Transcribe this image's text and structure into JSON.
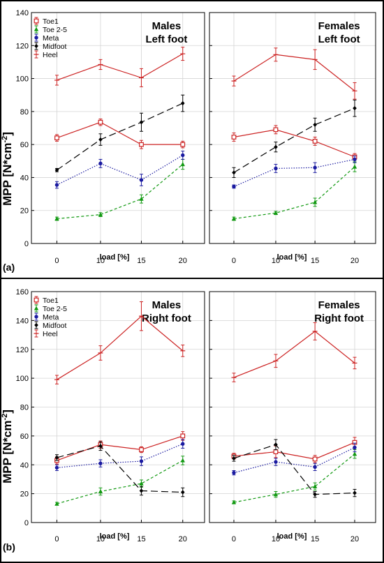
{
  "figure": {
    "y_axis_label": "MPP [N*cm",
    "y_axis_label_sup": "-2",
    "y_axis_label_end": "]",
    "x_axis_label": "load [%]"
  },
  "chart_data": [
    {
      "id": "a",
      "type": "line",
      "panel_label": "(a)",
      "x": [
        0,
        10,
        15,
        20
      ],
      "xticks": [
        "0",
        "10",
        "15",
        "20"
      ],
      "ylim": [
        0,
        140
      ],
      "yticks": [
        "0",
        "20",
        "40",
        "60",
        "80",
        "100",
        "120",
        "140"
      ],
      "legend": [
        "Toe1",
        "Toe 2-5",
        "Meta",
        "Midfoot",
        "Heel"
      ],
      "subplots": [
        {
          "title_line1": "Males",
          "title_line2": "Left foot",
          "series": [
            {
              "name": "Toe1",
              "values": [
                64,
                73.5,
                60,
                60
              ],
              "errors": [
                2,
                2,
                2.5,
                2
              ]
            },
            {
              "name": "Toe 2-5",
              "values": [
                15,
                17.5,
                27,
                48
              ],
              "errors": [
                1,
                1.2,
                2.5,
                3
              ]
            },
            {
              "name": "Meta",
              "values": [
                35.5,
                48.5,
                38.5,
                53.5
              ],
              "errors": [
                2,
                2.5,
                3.5,
                2.5
              ]
            },
            {
              "name": "Midfoot",
              "values": [
                44.5,
                63,
                73.5,
                85
              ],
              "errors": [
                1,
                3.5,
                5.5,
                5
              ]
            },
            {
              "name": "Heel",
              "values": [
                99,
                108.5,
                100.5,
                115
              ],
              "errors": [
                3,
                3,
                5.5,
                4
              ]
            }
          ]
        },
        {
          "title_line1": "Females",
          "title_line2": "Left foot",
          "series": [
            {
              "name": "Toe1",
              "values": [
                64.5,
                69,
                62,
                52.5
              ],
              "errors": [
                2.5,
                2.5,
                2.5,
                2
              ]
            },
            {
              "name": "Toe 2-5",
              "values": [
                15,
                18.5,
                25,
                46.5
              ],
              "errors": [
                1,
                1,
                2.5,
                3
              ]
            },
            {
              "name": "Meta",
              "values": [
                34.5,
                45.5,
                46,
                51
              ],
              "errors": [
                1,
                2.5,
                3,
                2
              ]
            },
            {
              "name": "Midfoot",
              "values": [
                43,
                58.5,
                72,
                82
              ],
              "errors": [
                3,
                3,
                4,
                5
              ]
            },
            {
              "name": "Heel",
              "values": [
                98.5,
                114.5,
                111.5,
                92.5
              ],
              "errors": [
                3,
                4,
                6,
                5
              ]
            }
          ]
        }
      ]
    },
    {
      "id": "b",
      "type": "line",
      "panel_label": "(b)",
      "x": [
        0,
        10,
        15,
        20
      ],
      "xticks": [
        "0",
        "10",
        "15",
        "20"
      ],
      "ylim": [
        0,
        160
      ],
      "yticks": [
        "0",
        "20",
        "40",
        "60",
        "80",
        "100",
        "120",
        "140",
        "160"
      ],
      "legend": [
        "Toe1",
        "Toe 2-5",
        "Meta",
        "Midfoot",
        "Heel"
      ],
      "subplots": [
        {
          "title_line1": "Males",
          "title_line2": "Right foot",
          "series": [
            {
              "name": "Toe1",
              "values": [
                43,
                54,
                50.5,
                60
              ],
              "errors": [
                2.5,
                2.5,
                2,
                3
              ]
            },
            {
              "name": "Toe 2-5",
              "values": [
                13,
                21.5,
                27,
                43
              ],
              "errors": [
                1,
                2.5,
                2.5,
                3
              ]
            },
            {
              "name": "Meta",
              "values": [
                38,
                41,
                42.5,
                54.5
              ],
              "errors": [
                2,
                2.5,
                3,
                3
              ]
            },
            {
              "name": "Midfoot",
              "values": [
                45,
                53,
                22,
                21
              ],
              "errors": [
                2,
                3,
                3,
                3
              ]
            },
            {
              "name": "Heel",
              "values": [
                99,
                117.5,
                143,
                119
              ],
              "errors": [
                3,
                5,
                10,
                4
              ]
            }
          ]
        },
        {
          "title_line1": "Females",
          "title_line2": "Right foot",
          "series": [
            {
              "name": "Toe1",
              "values": [
                46,
                49,
                44,
                55.5
              ],
              "errors": [
                2,
                4,
                2.5,
                3.5
              ]
            },
            {
              "name": "Toe 2-5",
              "values": [
                14,
                19.5,
                25,
                47.5
              ],
              "errors": [
                1,
                2,
                2.5,
                3
              ]
            },
            {
              "name": "Meta",
              "values": [
                34.5,
                42,
                38.5,
                52
              ],
              "errors": [
                1.5,
                2.5,
                2.5,
                3
              ]
            },
            {
              "name": "Midfoot",
              "values": [
                44.5,
                54,
                19.5,
                20.5
              ],
              "errors": [
                2,
                3.5,
                2,
                2.5
              ]
            },
            {
              "name": "Heel",
              "values": [
                100.5,
                112,
                132.5,
                110.5
              ],
              "errors": [
                3,
                4.5,
                6,
                4
              ]
            }
          ]
        }
      ]
    }
  ]
}
